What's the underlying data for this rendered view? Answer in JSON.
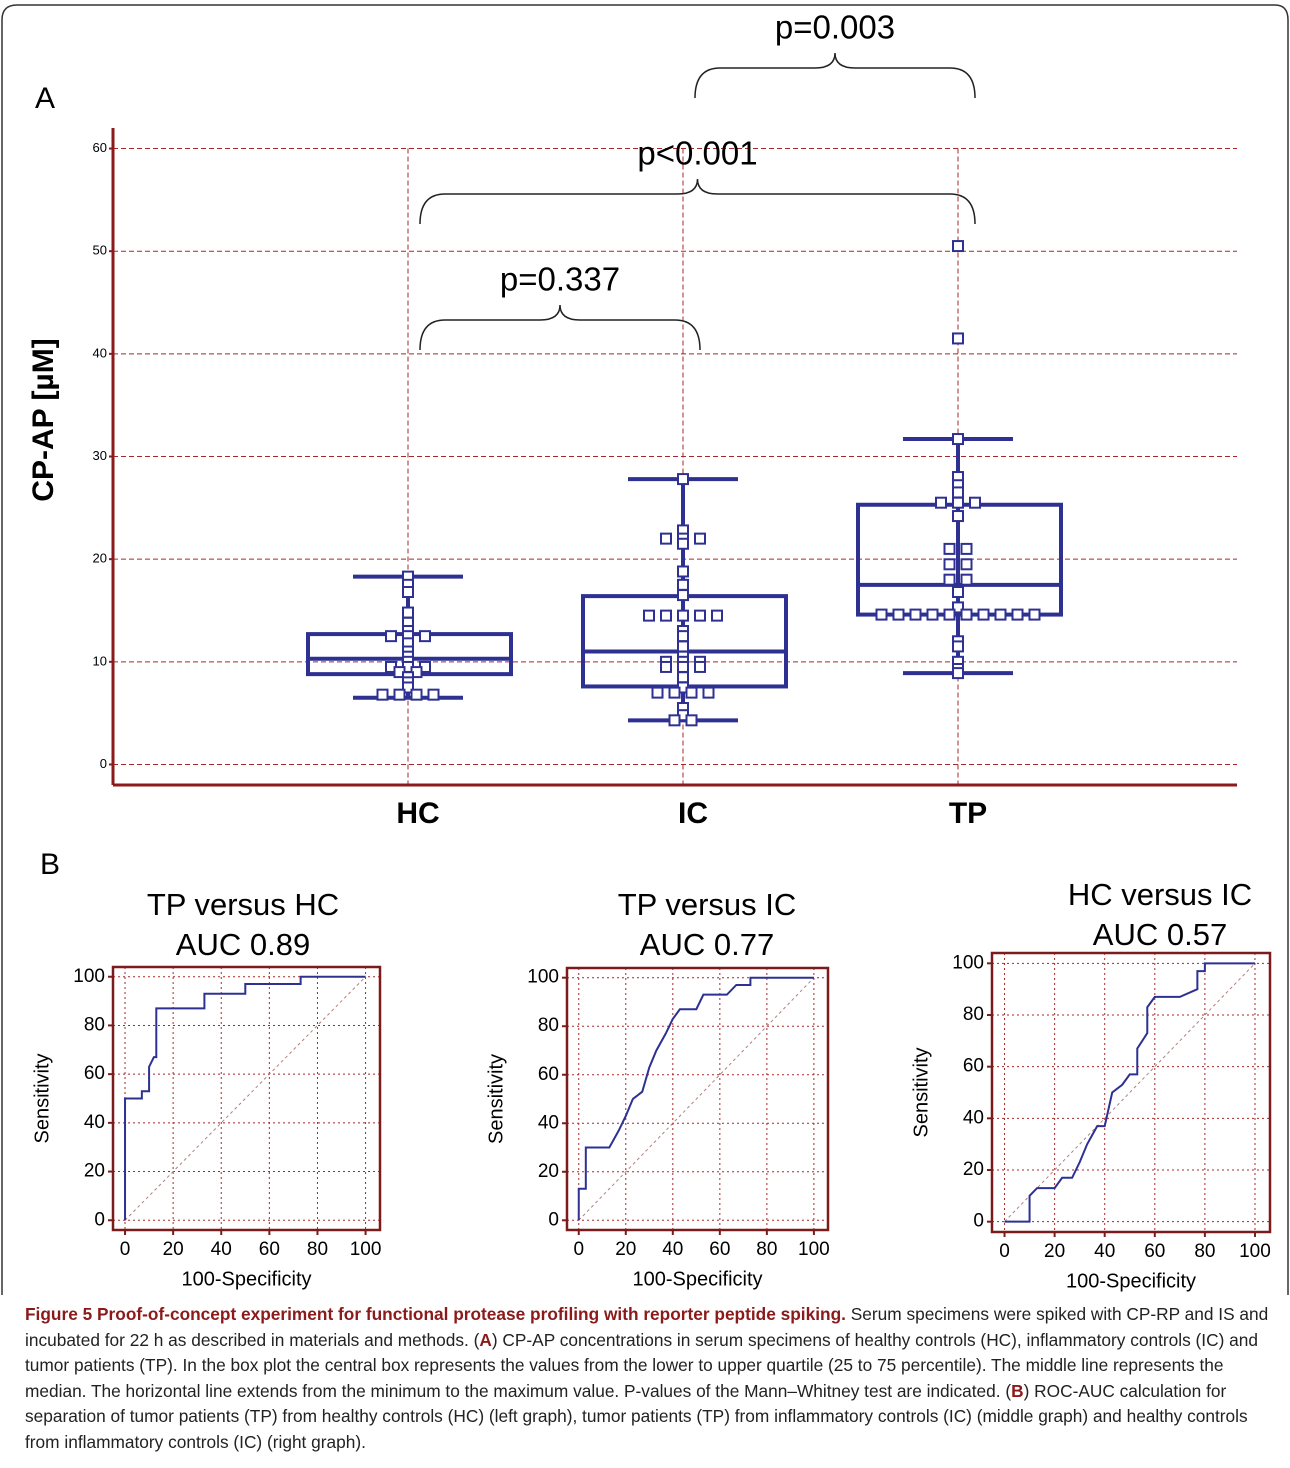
{
  "chart_data": [
    {
      "type": "box",
      "label": "A",
      "ylabel": "CP-AP [µM]",
      "categories": [
        "HC",
        "IC",
        "TP"
      ],
      "boxes": [
        {
          "min": 6.5,
          "q1": 8.8,
          "median": 10.3,
          "q3": 12.7,
          "max": 18.3
        },
        {
          "min": 4.3,
          "q1": 7.6,
          "median": 11.0,
          "q3": 16.4,
          "max": 27.8
        },
        {
          "min": 8.9,
          "q1": 14.6,
          "median": 17.5,
          "q3": 25.3,
          "max": 31.7
        }
      ],
      "points": [
        [
          18.3,
          17.5,
          16.8,
          14.8,
          13.8,
          13.0,
          12.5,
          12.5,
          12.5,
          11.8,
          11.0,
          10.5,
          10.0,
          9.5,
          9.5,
          9.5,
          9.0,
          9.0,
          8.5,
          8.0,
          7.5,
          6.8,
          6.8,
          6.8,
          6.8
        ],
        [
          27.8,
          22.8,
          22.0,
          22.0,
          22.0,
          21.5,
          18.8,
          17.5,
          16.5,
          14.5,
          14.5,
          14.5,
          14.5,
          14.5,
          13.0,
          12.5,
          11.5,
          10.5,
          10.0,
          10.0,
          10.0,
          9.5,
          9.5,
          9.5,
          8.5,
          7.5,
          7.0,
          7.0,
          7.0,
          7.0,
          5.5,
          4.8,
          4.3,
          4.3
        ],
        [
          50.5,
          41.5,
          31.7,
          28.0,
          27.2,
          26.5,
          25.5,
          25.5,
          25.5,
          24.2,
          21.0,
          21.0,
          19.5,
          19.5,
          18.0,
          18.0,
          16.8,
          15.3,
          14.6,
          14.6,
          14.6,
          14.6,
          14.6,
          14.6,
          14.6,
          14.6,
          14.6,
          14.6,
          12.0,
          11.5,
          10.0,
          9.3,
          8.9
        ]
      ],
      "color": "#2e3192",
      "ylim": [
        -2,
        62
      ],
      "yticks": [
        0,
        10,
        20,
        30,
        40,
        50,
        60
      ],
      "grid": true,
      "annotations": [
        {
          "text": "p=0.337",
          "from": 0,
          "to": 1
        },
        {
          "text": "p<0.001",
          "from": 0,
          "to": 2
        },
        {
          "text": "p=0.003",
          "from": 1,
          "to": 2
        }
      ]
    },
    {
      "type": "roc",
      "label": "B",
      "title": "TP versus HC",
      "subtitle": "AUC 0.89",
      "xlabel": "100-Specificity",
      "ylabel": "Sensitivity",
      "color": "#2e3192",
      "x": [
        0,
        0,
        7,
        7,
        10,
        10,
        12,
        13,
        13,
        33,
        33,
        50,
        50,
        73,
        73,
        100
      ],
      "values": [
        0,
        50,
        50,
        53,
        53,
        63,
        67,
        67,
        87,
        87,
        93,
        93,
        97,
        97,
        100,
        100
      ],
      "xlim": [
        -5,
        106
      ],
      "ylim": [
        -4,
        104
      ],
      "xticks": [
        0,
        20,
        40,
        60,
        80,
        100
      ],
      "yticks": [
        0,
        20,
        40,
        60,
        80,
        100
      ],
      "grid": true
    },
    {
      "type": "roc",
      "title": "TP versus IC",
      "subtitle": "AUC 0.77",
      "xlabel": "100-Specificity",
      "ylabel": "Sensitivity",
      "color": "#2e3192",
      "x": [
        0,
        0,
        3,
        3,
        13,
        17,
        20,
        23,
        27,
        30,
        33,
        37,
        40,
        43,
        50,
        53,
        63,
        67,
        73,
        73,
        100
      ],
      "values": [
        0,
        13,
        13,
        30,
        30,
        37,
        43,
        50,
        53,
        63,
        70,
        77,
        83,
        87,
        87,
        93,
        93,
        97,
        97,
        100,
        100
      ],
      "xlim": [
        -5,
        106
      ],
      "ylim": [
        -4,
        104
      ],
      "xticks": [
        0,
        20,
        40,
        60,
        80,
        100
      ],
      "yticks": [
        0,
        20,
        40,
        60,
        80,
        100
      ],
      "grid": true
    },
    {
      "type": "roc",
      "title": "HC versus IC",
      "subtitle": "AUC 0.57",
      "xlabel": "100-Specificity",
      "ylabel": "Sensitivity",
      "color": "#2e3192",
      "x": [
        0,
        10,
        10,
        13,
        20,
        23,
        27,
        30,
        33,
        37,
        40,
        43,
        47,
        50,
        53,
        53,
        57,
        57,
        60,
        70,
        77,
        77,
        80,
        80,
        100
      ],
      "values": [
        0,
        0,
        10,
        13,
        13,
        17,
        17,
        23,
        30,
        37,
        37,
        50,
        53,
        57,
        57,
        67,
        73,
        83,
        87,
        87,
        90,
        97,
        97,
        100,
        100
      ],
      "xlim": [
        -5,
        106
      ],
      "ylim": [
        -4,
        104
      ],
      "xticks": [
        0,
        20,
        40,
        60,
        80,
        100
      ],
      "yticks": [
        0,
        20,
        40,
        60,
        80,
        100
      ],
      "grid": true
    }
  ],
  "caption": {
    "title": "Figure 5 Proof-of-concept experiment for functional protease profiling with reporter peptide spiking.",
    "body": [
      " Serum specimens were spiked with CP-RP and IS and incubated for 22 h as described in materials and methods. (",
      "A",
      ") CP-AP concentrations in serum specimens of healthy controls (HC), inflammatory controls (IC) and tumor patients (TP). In the box plot the central box represents the values from the lower to upper quartile (25 to 75 percentile). The middle line represents the median. The horizontal line extends from the minimum to the maximum value. P-values of the Mann–Whitney test are indicated. (",
      "B",
      ") ROC-AUC calculation for separation of tumor patients (TP) from healthy controls (HC) (left graph), tumor patients (TP) from inflammatory controls (IC) (middle graph) and healthy controls from inflammatory controls (IC) (right graph)."
    ]
  }
}
